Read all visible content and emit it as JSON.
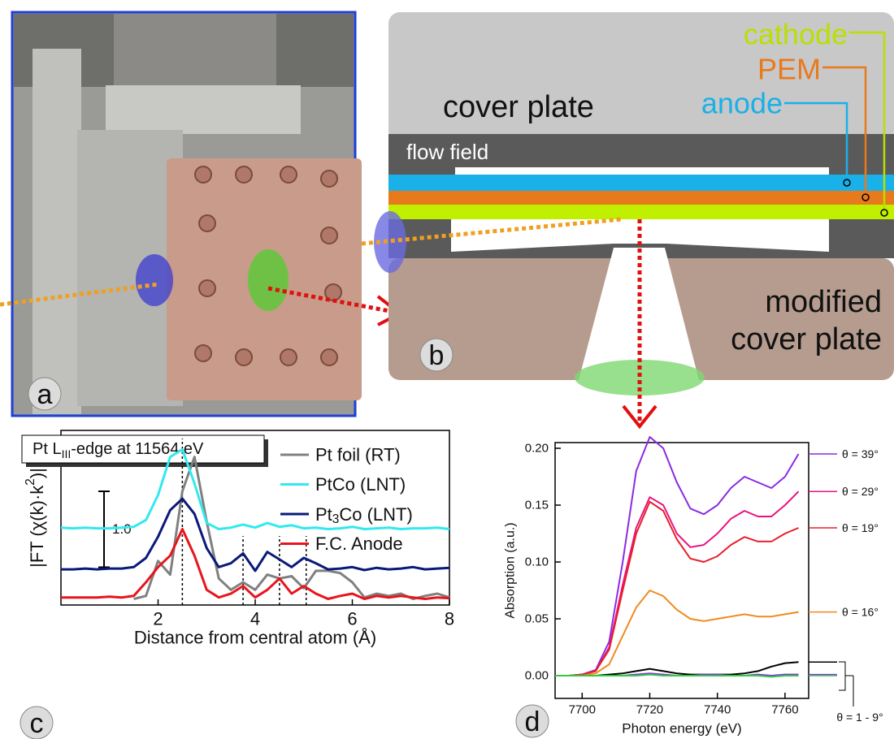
{
  "panels": {
    "a": "a",
    "b": "b",
    "c": "c",
    "d": "d"
  },
  "diagram": {
    "cover_plate": "cover plate",
    "flow_field": "flow field",
    "cathode": "cathode",
    "pem": "PEM",
    "anode": "anode",
    "modified_cover_plate": [
      "modified",
      "cover plate"
    ]
  },
  "chart_data": [
    {
      "type": "line",
      "title": [
        "Pt L",
        {
          "sub": "III"
        },
        "-edge at 11564 eV"
      ],
      "xlabel": "Distance from central atom (Å)",
      "ylabel": [
        "|FT (χ(k)·k",
        {
          "sup": "2"
        },
        ")|"
      ],
      "x": [
        0,
        0.25,
        0.5,
        0.75,
        1,
        1.25,
        1.5,
        1.75,
        2,
        2.25,
        2.5,
        2.75,
        3,
        3.25,
        3.5,
        3.75,
        4,
        4.25,
        4.5,
        4.75,
        5,
        5.25,
        5.5,
        5.75,
        6,
        6.25,
        6.5,
        6.75,
        7,
        7.25,
        7.5,
        7.75,
        8
      ],
      "xlim": [
        0,
        8
      ],
      "xticks": [
        2,
        4,
        6,
        8
      ],
      "ylim": [
        0,
        2.3
      ],
      "scale_bar": {
        "value": 1,
        "label": "1.0"
      },
      "reference_lines": [
        2.5,
        3.75,
        4.5,
        5.05
      ],
      "series": [
        {
          "name": "Pt foil (RT)",
          "color": "#808080",
          "values": [
            null,
            null,
            null,
            null,
            null,
            null,
            0.08,
            0.12,
            0.58,
            0.4,
            1.5,
            1.95,
            1.1,
            0.35,
            0.2,
            0.3,
            0.2,
            0.4,
            0.35,
            0.38,
            0.22,
            0.45,
            0.45,
            0.42,
            0.3,
            0.1,
            0.15,
            0.12,
            0.15,
            0.08,
            0.12,
            0.15,
            0.1
          ]
        },
        {
          "name": "PtCo (LNT)",
          "color": "#33e8f0",
          "values": [
            1.02,
            1.01,
            1.02,
            1.01,
            1.01,
            1.02,
            1.03,
            1.12,
            1.45,
            1.95,
            2.05,
            1.6,
            1.08,
            1.0,
            1.02,
            1.06,
            1.02,
            1.08,
            1.03,
            1.05,
            1.01,
            1.02,
            1.0,
            1.01,
            1.03,
            1.0,
            1.01,
            1.02,
            1.0,
            1.01,
            1.01,
            1.02,
            1.0
          ]
        },
        {
          "name": [
            "Pt",
            {
              "sub": "3"
            },
            "Co (LNT)"
          ],
          "color": "#0a1a78",
          "values": [
            0.47,
            0.47,
            0.48,
            0.47,
            0.48,
            0.48,
            0.5,
            0.62,
            0.9,
            1.25,
            1.4,
            1.2,
            0.75,
            0.5,
            0.55,
            0.68,
            0.45,
            0.7,
            0.6,
            0.5,
            0.62,
            0.55,
            0.47,
            0.48,
            0.5,
            0.46,
            0.49,
            0.47,
            0.48,
            0.5,
            0.47,
            0.48,
            0.49
          ]
        },
        {
          "name": "F.C. Anode",
          "color": "#e8141c",
          "values": [
            0.1,
            0.1,
            0.1,
            0.1,
            0.11,
            0.1,
            0.12,
            0.3,
            0.5,
            0.65,
            1.0,
            0.65,
            0.2,
            0.1,
            0.15,
            0.25,
            0.1,
            0.2,
            0.35,
            0.15,
            0.25,
            0.15,
            0.08,
            0.12,
            0.15,
            0.08,
            0.12,
            0.1,
            0.12,
            0.1,
            0.08,
            0.1,
            0.09
          ]
        }
      ]
    },
    {
      "type": "line",
      "xlabel": "Photon energy (eV)",
      "ylabel": "Absorption (a.u.)",
      "x": [
        7692,
        7696,
        7700,
        7704,
        7708,
        7712,
        7716,
        7720,
        7724,
        7728,
        7732,
        7736,
        7740,
        7744,
        7748,
        7752,
        7756,
        7760,
        7764
      ],
      "xlim": [
        7692,
        7767
      ],
      "xticks": [
        7700,
        7720,
        7740,
        7760
      ],
      "ylim": [
        -0.02,
        0.205
      ],
      "yticks": [
        {
          "value": 0,
          "label": "0.00"
        },
        0.05,
        {
          "value": 0.1,
          "label": "0.10"
        },
        0.15,
        {
          "value": 0.2,
          "label": "0.20"
        }
      ],
      "series": [
        {
          "name": "θ = 39°",
          "color": "#8a2be2",
          "values": [
            0,
            0,
            0.001,
            0.005,
            0.03,
            0.1,
            0.18,
            0.21,
            0.2,
            0.17,
            0.147,
            0.142,
            0.15,
            0.165,
            0.175,
            0.17,
            0.165,
            0.175,
            0.195
          ]
        },
        {
          "name": "θ = 29°",
          "color": "#e8147f",
          "values": [
            0,
            0,
            0.001,
            0.004,
            0.025,
            0.08,
            0.13,
            0.157,
            0.15,
            0.125,
            0.113,
            0.115,
            0.125,
            0.138,
            0.145,
            0.14,
            0.14,
            0.15,
            0.162
          ]
        },
        {
          "name": "θ = 19°",
          "color": "#e81e2a",
          "values": [
            0,
            0,
            0.001,
            0.004,
            0.023,
            0.075,
            0.125,
            0.153,
            0.145,
            0.12,
            0.103,
            0.1,
            0.105,
            0.115,
            0.122,
            0.118,
            0.118,
            0.125,
            0.13
          ]
        },
        {
          "name": "θ = 16°",
          "color": "#f08a1e",
          "values": [
            0,
            0,
            0,
            0.002,
            0.01,
            0.035,
            0.06,
            0.075,
            0.07,
            0.058,
            0.05,
            0.048,
            0.05,
            0.052,
            0.054,
            0.052,
            0.052,
            0.054,
            0.056
          ]
        },
        {
          "name": "θ = 1 - 9°",
          "color": "#000000",
          "values": [
            0,
            0,
            0,
            0,
            0.001,
            0.002,
            0.004,
            0.006,
            0.004,
            0.002,
            0.001,
            0.001,
            0.001,
            0.001,
            0.002,
            0.004,
            0.008,
            0.011,
            0.012
          ]
        },
        {
          "color": "#8a2be2",
          "values": [
            0,
            0,
            0,
            0,
            0,
            0,
            0.001,
            0.002,
            0.001,
            0,
            0,
            0.001,
            0.001,
            0,
            0,
            0.001,
            0,
            0.001,
            0.001
          ]
        },
        {
          "color": "#2ecc40",
          "values": [
            0,
            0,
            0,
            0,
            0,
            0,
            0,
            0.001,
            0,
            0,
            0,
            0,
            0,
            0,
            0,
            0,
            -0.001,
            0,
            0
          ]
        }
      ]
    }
  ]
}
